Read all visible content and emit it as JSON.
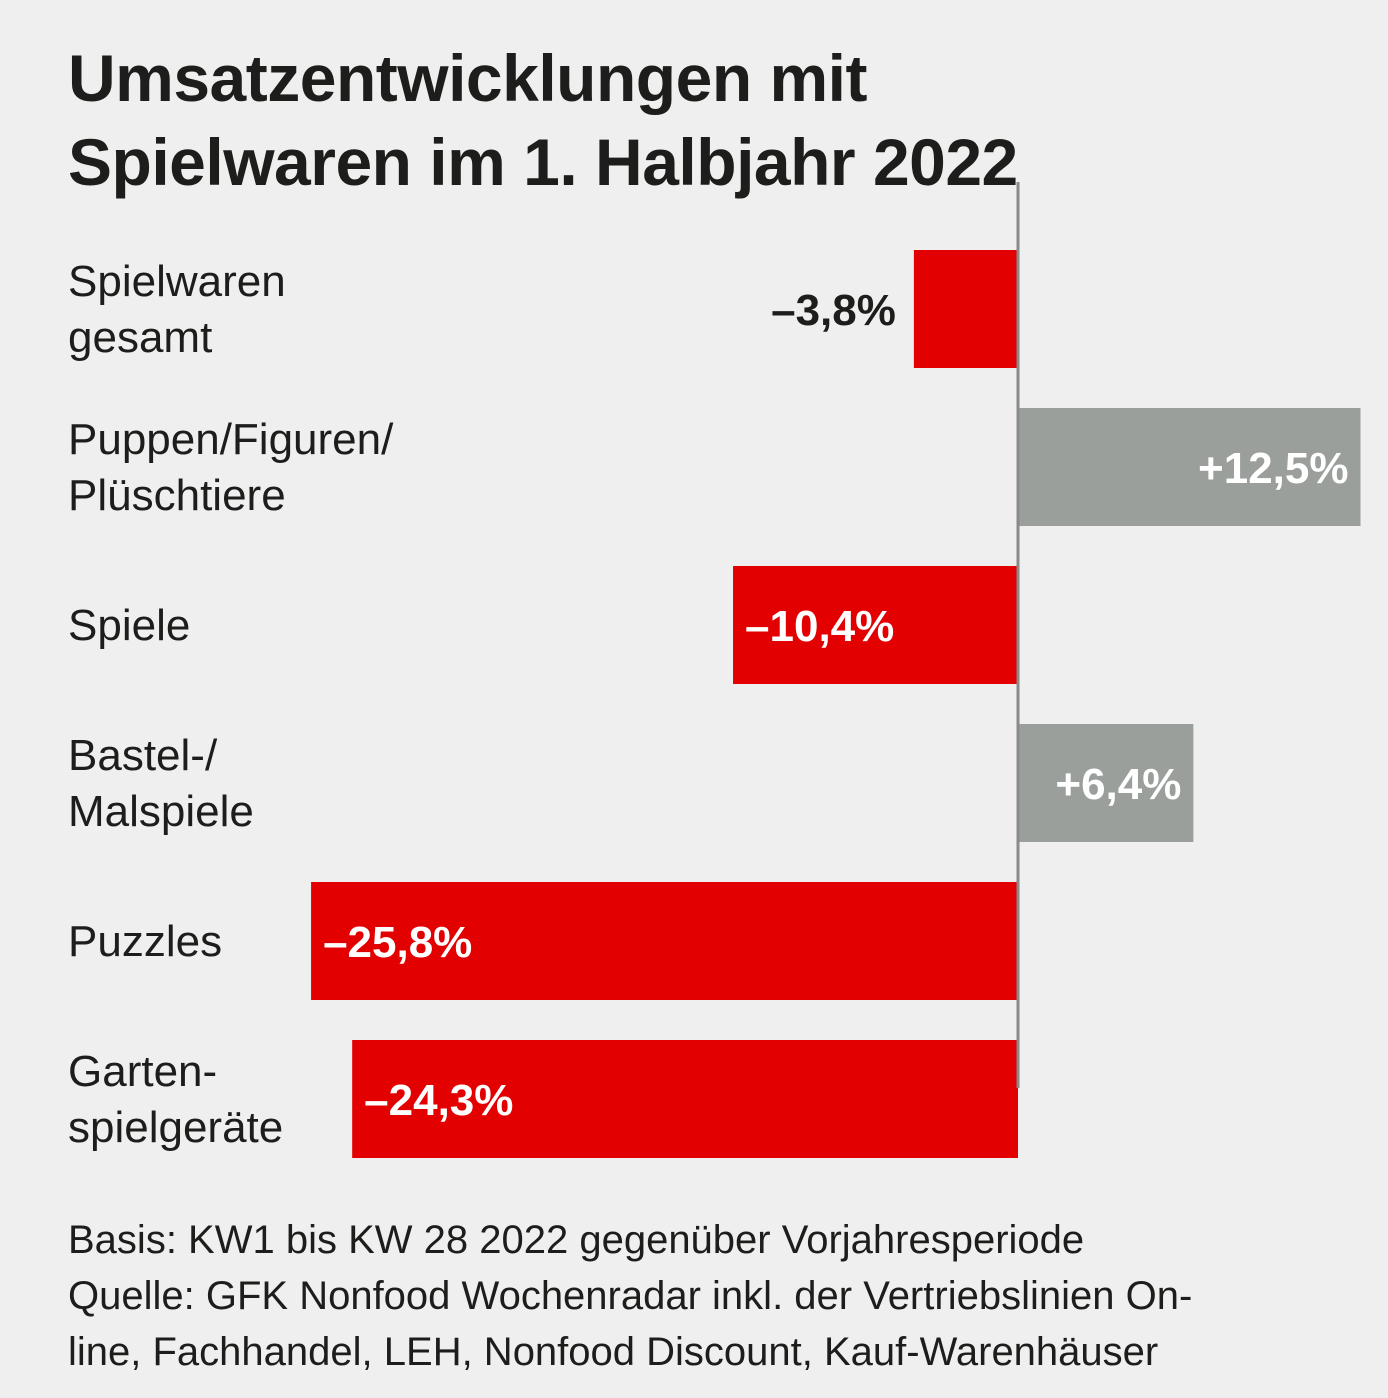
{
  "chart_data": {
    "type": "bar",
    "orientation": "horizontal",
    "title_lines": [
      "Umsatzentwicklungen mit",
      "Spielwaren im 1. Halbjahr 2022"
    ],
    "categories": [
      [
        "Spielwaren",
        "gesamt"
      ],
      [
        "Puppen/Figuren/",
        "Plüschtiere"
      ],
      [
        "Spiele"
      ],
      [
        "Bastel-/",
        "Malspiele"
      ],
      [
        "Puzzles"
      ],
      [
        "Garten-",
        "spielgeräte"
      ]
    ],
    "values": [
      -3.8,
      12.5,
      -10.4,
      6.4,
      -25.8,
      -24.3
    ],
    "value_labels": [
      "–3,8%",
      "+12,5%",
      "–10,4%",
      "+6,4%",
      "–25,8%",
      "–24,3%"
    ],
    "unit": "%",
    "colors": {
      "negative": "#e30000",
      "positive": "#9b9f9b",
      "axis": "#8a8a8a"
    }
  },
  "footer_lines": [
    "Basis: KW1 bis KW 28 2022 gegenüber Vorjahresperiode",
    "Quelle: GFK Nonfood Wochenradar inkl. der Vertriebslinien On-",
    "line, Fachhandel, LEH, Nonfood Discount, Kauf-Warenhäuser"
  ]
}
